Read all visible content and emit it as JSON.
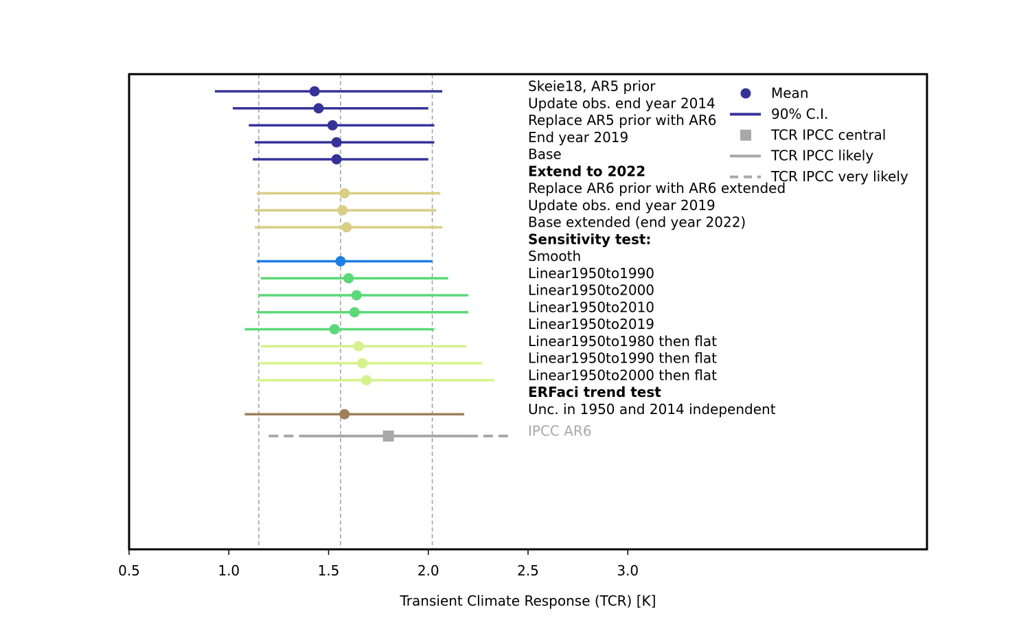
{
  "chart_data": {
    "type": "scatter",
    "title": "",
    "xlabel": "Transient Climate Response (TCR) [K]",
    "ylabel": "",
    "xlim": [
      0.5,
      4.5
    ],
    "xticks": [
      "0.5",
      "1.0",
      "1.5",
      "2.0",
      "2.5",
      "3.0"
    ],
    "grid": false,
    "legend_placement": "top-right",
    "reference_lines": [
      1.15,
      1.56,
      2.02
    ],
    "reference_line_color": "#a0a0a0",
    "text_column_x": 2.5,
    "rows": [
      {
        "label": "Skeie18, AR5 prior",
        "mean": 1.43,
        "low": 0.93,
        "high": 2.07,
        "color": "#35339a"
      },
      {
        "label": "Update obs. end year 2014",
        "mean": 1.45,
        "low": 1.02,
        "high": 2.0,
        "color": "#35339a"
      },
      {
        "label": "Replace AR5 prior with AR6",
        "mean": 1.52,
        "low": 1.1,
        "high": 2.03,
        "color": "#35339a"
      },
      {
        "label": "End year 2019",
        "mean": 1.54,
        "low": 1.13,
        "high": 2.03,
        "color": "#35339a"
      },
      {
        "label": "Base",
        "mean": 1.54,
        "low": 1.12,
        "high": 2.0,
        "color": "#35339a"
      },
      {
        "label": "Extend to 2022",
        "bold": true
      },
      {
        "label": "Replace AR6 prior with AR6 extended",
        "mean": 1.58,
        "low": 1.14,
        "high": 2.06,
        "color": "#d9ce85"
      },
      {
        "label": "Update obs. end year 2019",
        "mean": 1.57,
        "low": 1.13,
        "high": 2.04,
        "color": "#d9ce85"
      },
      {
        "label": "Base extended (end year 2022)",
        "mean": 1.59,
        "low": 1.13,
        "high": 2.07,
        "color": "#d9ce85"
      },
      {
        "label": "Sensitivity test:",
        "bold": true
      },
      {
        "label": "Smooth",
        "mean": 1.56,
        "low": 1.14,
        "high": 2.02,
        "color": "#1a7fe6"
      },
      {
        "label": "Linear1950to1990",
        "mean": 1.6,
        "low": 1.16,
        "high": 2.1,
        "color": "#5ad977"
      },
      {
        "label": "Linear1950to2000",
        "mean": 1.64,
        "low": 1.15,
        "high": 2.2,
        "color": "#5ad977"
      },
      {
        "label": "Linear1950to2010",
        "mean": 1.63,
        "low": 1.14,
        "high": 2.2,
        "color": "#5ad977"
      },
      {
        "label": "Linear1950to2019",
        "mean": 1.53,
        "low": 1.08,
        "high": 2.03,
        "color": "#5ad977"
      },
      {
        "label": "Linear1950to1980 then flat",
        "mean": 1.65,
        "low": 1.16,
        "high": 2.19,
        "color": "#d6f28a"
      },
      {
        "label": "Linear1950to1990 then flat",
        "mean": 1.67,
        "low": 1.15,
        "high": 2.27,
        "color": "#d6f28a"
      },
      {
        "label": "Linear1950to2000 then flat",
        "mean": 1.69,
        "low": 1.14,
        "high": 2.33,
        "color": "#d6f28a"
      },
      {
        "label": "ERFaci trend test",
        "bold": true
      },
      {
        "label": "Unc. in 1950 and 2014 independent",
        "mean": 1.58,
        "low": 1.08,
        "high": 2.18,
        "color": "#a0805a"
      },
      {
        "label": "IPCC AR6",
        "ipcc": true,
        "central": 1.8,
        "likely": [
          1.4,
          2.2
        ],
        "very_likely": [
          1.2,
          2.4
        ],
        "color": "#a8a8a8"
      }
    ],
    "legend": {
      "entries": [
        {
          "label": "Mean",
          "marker": "dot",
          "color": "#35339a"
        },
        {
          "label": "90% C.I.",
          "marker": "line",
          "color": "#35339a"
        },
        {
          "label": "TCR IPCC central",
          "marker": "square",
          "color": "#a8a8a8"
        },
        {
          "label": "TCR IPCC likely",
          "marker": "line",
          "color": "#a8a8a8"
        },
        {
          "label": "TCR IPCC very likely",
          "marker": "dashed",
          "color": "#a8a8a8"
        }
      ]
    }
  }
}
